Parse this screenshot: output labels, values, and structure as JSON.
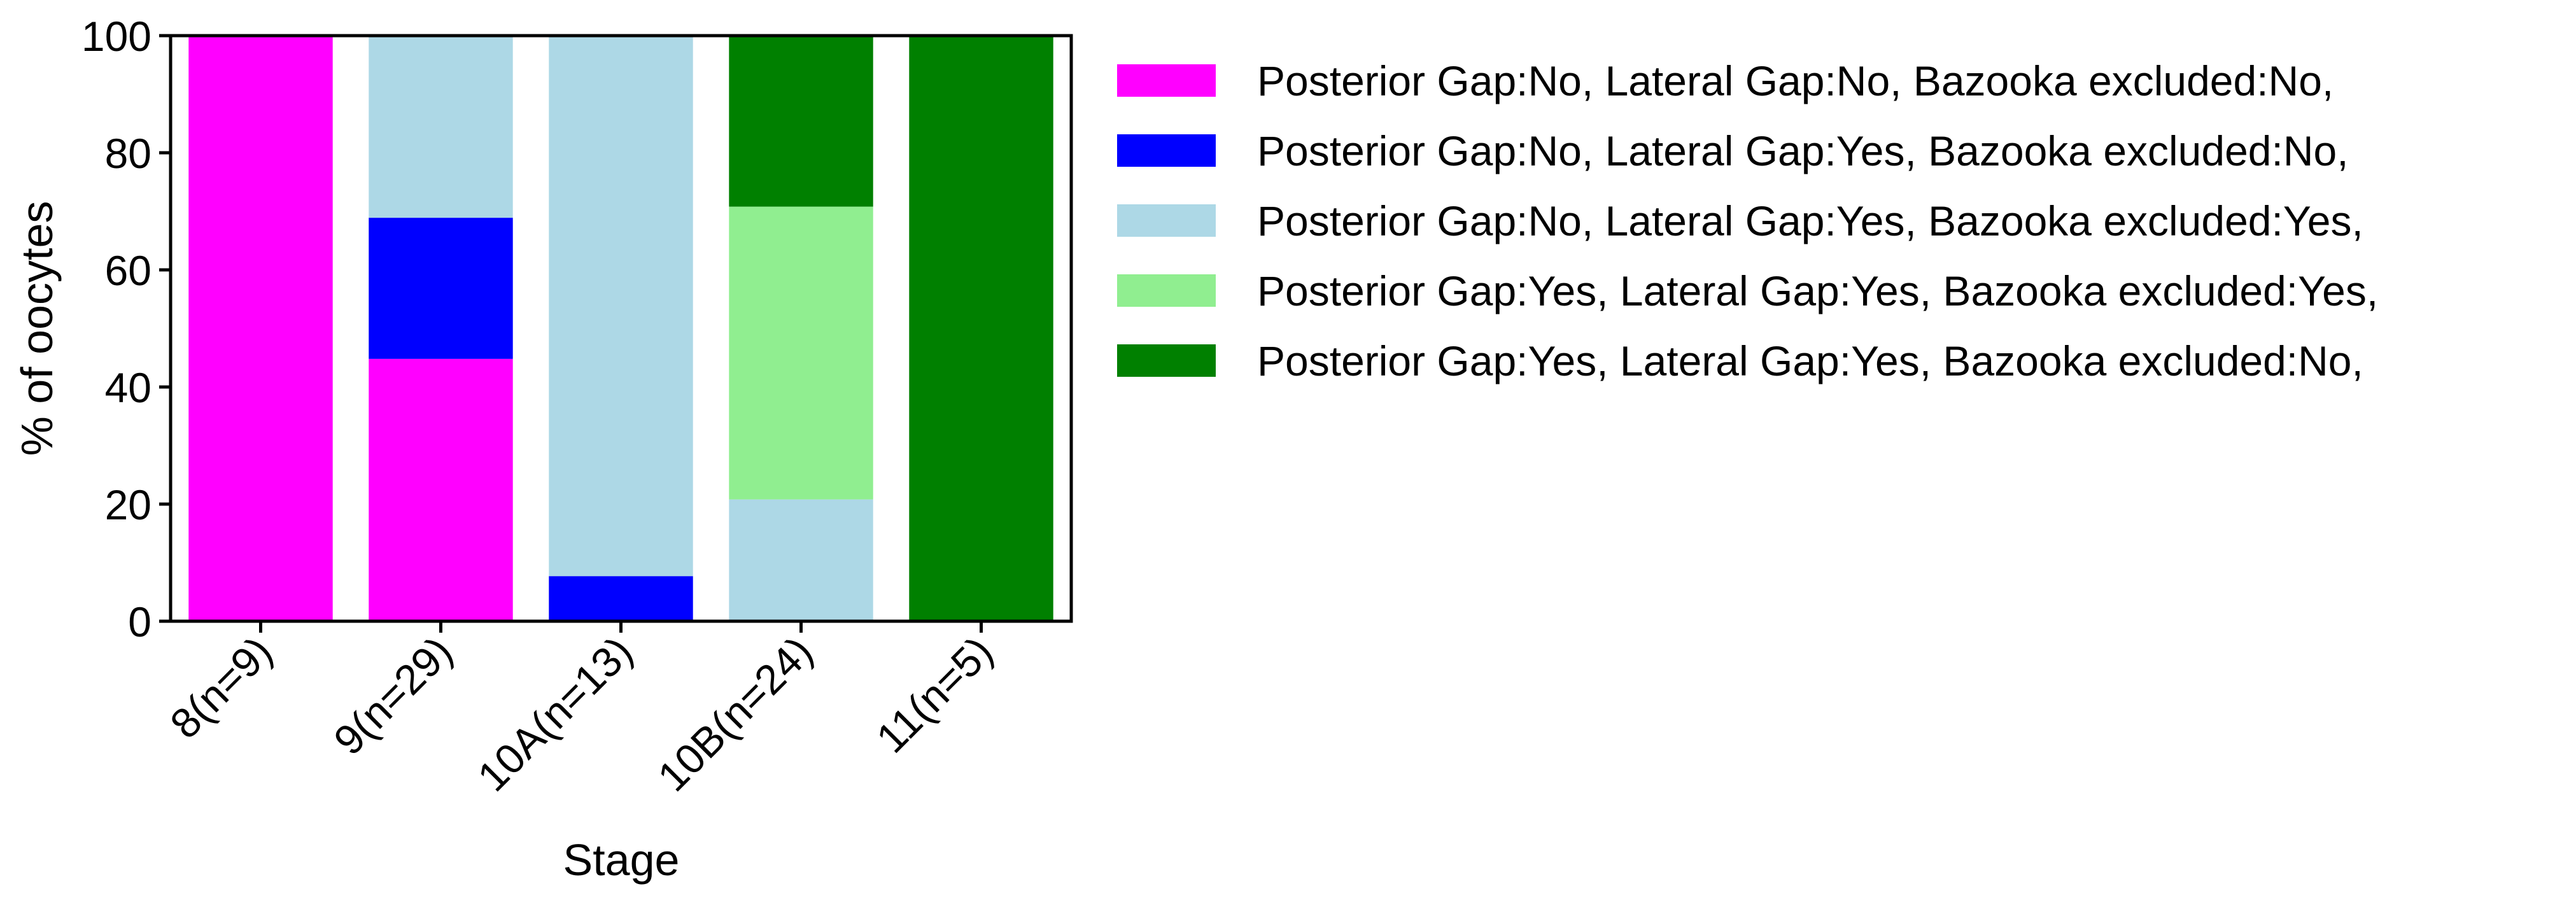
{
  "chart_data": {
    "type": "bar",
    "stacked": true,
    "title": "",
    "xlabel": "Stage",
    "ylabel": "% of oocytes",
    "ylim": [
      0,
      100
    ],
    "yticks": [
      0,
      20,
      40,
      60,
      80,
      100
    ],
    "grid": false,
    "legend_position": "outside-right",
    "categories": [
      "8(n=9)",
      "9(n=29)",
      "10A(n=13)",
      "10B(n=24)",
      "11(n=5)"
    ],
    "series": [
      {
        "name": "Posterior Gap:No, Lateral Gap:No, Bazooka excluded:No,",
        "color": "#ff00ff",
        "values": [
          100,
          44.8,
          0,
          0,
          0
        ]
      },
      {
        "name": "Posterior Gap:No, Lateral Gap:Yes, Bazooka excluded:No,",
        "color": "#0000ff",
        "values": [
          0,
          24.1,
          7.7,
          0,
          0
        ]
      },
      {
        "name": "Posterior Gap:No, Lateral Gap:Yes, Bazooka excluded:Yes,",
        "color": "#add8e6",
        "values": [
          0,
          31.1,
          92.3,
          20.8,
          0
        ]
      },
      {
        "name": "Posterior Gap:Yes, Lateral Gap:Yes, Bazooka excluded:Yes,",
        "color": "#90ee90",
        "values": [
          0,
          0,
          0,
          50.0,
          0
        ]
      },
      {
        "name": "Posterior Gap:Yes, Lateral Gap:Yes, Bazooka excluded:No,",
        "color": "#008000",
        "values": [
          0,
          0,
          0,
          29.2,
          100
        ]
      }
    ]
  }
}
